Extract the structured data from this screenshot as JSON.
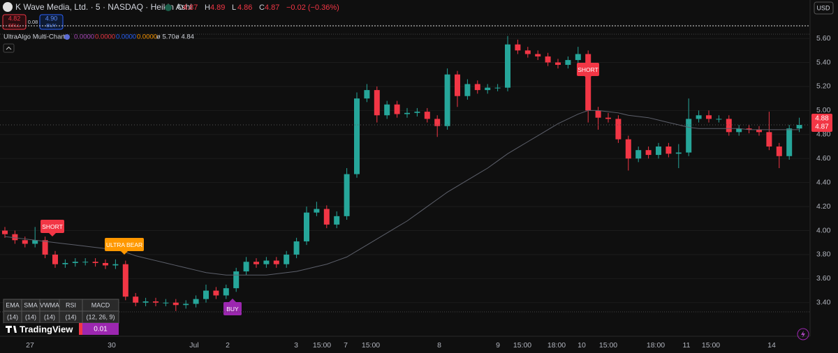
{
  "header": {
    "symbol": "K Wave Media, Ltd. · 5 · NASDAQ · Heikin Ashi",
    "ohlc": [
      {
        "label": "O",
        "value": 4.87
      },
      {
        "label": "H",
        "value": 4.89
      },
      {
        "label": "L",
        "value": 4.86
      },
      {
        "label": "C",
        "value": 4.87
      }
    ],
    "change": "−0.02 (−0.36%)",
    "currency": "USD"
  },
  "trade": {
    "sell_price": 4.82,
    "sell": "SELL",
    "spread": 0.08,
    "buy_price": 4.9,
    "buy_price_label": "4.90",
    "buy": "BUY"
  },
  "indicator": {
    "name": "UltraAlgo Multi-Chart",
    "values": [
      {
        "text": "0.0000",
        "color": "#ab47bc"
      },
      {
        "text": "0.0000",
        "color": "#f23645"
      },
      {
        "text": "0.0000",
        "color": "#2962ff"
      },
      {
        "text": "0.0000",
        "color": "#ff9800"
      },
      {
        "text": "ø 5.70",
        "color": "#d1d4dc"
      },
      {
        "text": "ø 4.84",
        "color": "#d1d4dc"
      }
    ]
  },
  "signals": [
    {
      "text": "SHORT",
      "color": "#f23645"
    },
    {
      "text": "ULTRA BEAR",
      "color": "#ff9800"
    },
    {
      "text": "BUY",
      "color": "#9c27b0"
    },
    {
      "text": "SHORT",
      "color": "#f23645"
    }
  ],
  "table": {
    "header": [
      "EMA",
      "SMA",
      "VWMA",
      "RSI",
      "MACD"
    ],
    "rows": [
      [
        "(14)",
        "(14)",
        "(14)",
        "(14)",
        "(12, 26, 9)"
      ]
    ],
    "last_value": "0.01"
  },
  "logo": "TradingView",
  "chart_data": {
    "type": "candlestick",
    "up_color": "#26a69a",
    "down_color": "#f23645",
    "ma_color": "#5d606b",
    "xlabels": [
      "27",
      "30",
      "Jul",
      "2",
      "3",
      "15:00",
      "7",
      "15:00",
      "8",
      "9",
      "15:00",
      "18:00",
      "10",
      "15:00",
      "18:00",
      "11",
      "15:00",
      "14"
    ],
    "ylim": [
      3.12,
      5.92
    ],
    "yticks": [
      {
        "value": 3.4,
        "label": "3.40"
      },
      {
        "value": 3.6,
        "label": "3.60"
      },
      {
        "value": 3.8,
        "label": "3.80"
      },
      {
        "value": 4.0,
        "label": "4.00"
      },
      {
        "value": 4.2,
        "label": "4.20"
      },
      {
        "value": 4.4,
        "label": "4.40"
      },
      {
        "value": 4.6,
        "label": "4.60"
      },
      {
        "value": 4.8,
        "label": "4.80"
      },
      {
        "value": 5.0,
        "label": "5.00"
      },
      {
        "value": 5.2,
        "label": "5.20"
      },
      {
        "value": 5.4,
        "label": "5.40"
      },
      {
        "value": 5.6,
        "label": "5.60"
      }
    ],
    "grid": true,
    "price_tags": [
      4.88,
      4.87
    ],
    "open": [
      4.0,
      3.97,
      3.92,
      3.89,
      3.92,
      3.8,
      3.72,
      3.73,
      3.74,
      3.74,
      3.73,
      3.71,
      3.72,
      3.45,
      3.4,
      3.41,
      3.4,
      3.4,
      3.38,
      3.39,
      3.43,
      3.5,
      3.46,
      3.52,
      3.66,
      3.74,
      3.72,
      3.75,
      3.72,
      3.8,
      3.91,
      4.15,
      4.18,
      4.05,
      4.12,
      4.47,
      5.1,
      5.17,
      4.96,
      5.05,
      4.97,
      4.98,
      4.99,
      4.93,
      4.87,
      5.3,
      5.12,
      5.22,
      5.17,
      5.19,
      5.19,
      5.55,
      5.5,
      5.47,
      5.45,
      5.4,
      5.38,
      5.42,
      5.47,
      5.0,
      4.94,
      4.93,
      4.76,
      4.6,
      4.67,
      4.63,
      4.7,
      4.64,
      4.65,
      4.93,
      4.96,
      4.93,
      4.93,
      4.82,
      4.85,
      4.84,
      4.82,
      4.7,
      4.62,
      4.85
    ],
    "high": [
      4.03,
      4.0,
      3.95,
      4.03,
      3.95,
      3.83,
      3.76,
      3.77,
      3.77,
      3.77,
      3.76,
      3.76,
      3.75,
      3.48,
      3.44,
      3.44,
      3.43,
      3.43,
      3.42,
      3.46,
      3.55,
      3.53,
      3.55,
      3.69,
      3.78,
      3.77,
      3.78,
      3.78,
      3.83,
      3.94,
      4.2,
      4.24,
      4.21,
      4.16,
      4.52,
      5.15,
      5.22,
      5.2,
      5.08,
      5.08,
      5.02,
      5.02,
      5.02,
      4.96,
      5.35,
      5.33,
      5.26,
      5.25,
      5.22,
      5.22,
      5.62,
      5.59,
      5.53,
      5.5,
      5.48,
      5.43,
      5.45,
      5.53,
      5.5,
      5.03,
      4.98,
      4.96,
      4.79,
      4.7,
      4.7,
      4.73,
      4.73,
      4.72,
      5.1,
      5.0,
      5.0,
      4.96,
      4.96,
      4.88,
      4.88,
      4.87,
      4.99,
      4.73,
      4.88,
      4.94
    ],
    "low": [
      3.94,
      3.89,
      3.86,
      3.86,
      3.77,
      3.69,
      3.69,
      3.7,
      3.71,
      3.7,
      3.68,
      3.68,
      3.42,
      3.37,
      3.37,
      3.37,
      3.37,
      3.33,
      3.35,
      3.36,
      3.4,
      3.43,
      3.43,
      3.49,
      3.63,
      3.69,
      3.69,
      3.69,
      3.69,
      3.77,
      3.88,
      4.12,
      4.02,
      4.02,
      4.09,
      4.44,
      5.07,
      4.9,
      4.93,
      4.94,
      4.94,
      4.95,
      4.9,
      4.78,
      4.84,
      5.03,
      5.09,
      5.14,
      5.14,
      5.16,
      5.16,
      5.47,
      5.44,
      5.42,
      5.37,
      5.35,
      5.35,
      5.39,
      4.9,
      4.84,
      4.9,
      4.73,
      4.5,
      4.57,
      4.6,
      4.6,
      4.61,
      4.52,
      4.62,
      4.9,
      4.9,
      4.9,
      4.79,
      4.79,
      4.81,
      4.79,
      4.67,
      4.52,
      4.59,
      4.82
    ],
    "close": [
      3.97,
      3.92,
      3.89,
      3.92,
      3.8,
      3.72,
      3.73,
      3.74,
      3.74,
      3.73,
      3.71,
      3.72,
      3.45,
      3.4,
      3.41,
      3.4,
      3.4,
      3.38,
      3.39,
      3.43,
      3.5,
      3.46,
      3.52,
      3.66,
      3.74,
      3.72,
      3.75,
      3.72,
      3.8,
      3.91,
      4.15,
      4.18,
      4.05,
      4.12,
      4.47,
      5.1,
      5.17,
      4.96,
      5.05,
      4.97,
      4.98,
      4.99,
      4.93,
      4.87,
      5.3,
      5.12,
      5.22,
      5.17,
      5.19,
      5.19,
      5.55,
      5.5,
      5.47,
      5.45,
      5.4,
      5.38,
      5.42,
      5.47,
      5.0,
      4.94,
      4.93,
      4.76,
      4.6,
      4.67,
      4.63,
      4.7,
      4.64,
      4.65,
      4.93,
      4.96,
      4.93,
      4.93,
      4.82,
      4.85,
      4.84,
      4.82,
      4.7,
      4.62,
      4.85,
      4.88
    ],
    "ma": [
      3.95,
      3.94,
      3.93,
      3.92,
      3.91,
      3.9,
      3.89,
      3.88,
      3.87,
      3.86,
      3.85,
      3.84,
      3.82,
      3.79,
      3.77,
      3.75,
      3.73,
      3.71,
      3.69,
      3.67,
      3.65,
      3.64,
      3.63,
      3.63,
      3.63,
      3.63,
      3.63,
      3.64,
      3.65,
      3.66,
      3.68,
      3.7,
      3.72,
      3.75,
      3.78,
      3.83,
      3.88,
      3.93,
      3.98,
      4.03,
      4.08,
      4.14,
      4.2,
      4.26,
      4.32,
      4.37,
      4.42,
      4.47,
      4.52,
      4.58,
      4.64,
      4.69,
      4.74,
      4.79,
      4.84,
      4.89,
      4.93,
      4.97,
      5.0,
      5.0,
      4.99,
      4.98,
      4.96,
      4.95,
      4.94,
      4.92,
      4.9,
      4.88,
      4.86,
      4.85,
      4.85,
      4.85,
      4.85,
      4.85,
      4.84,
      4.84,
      4.84,
      4.84,
      4.84,
      4.84
    ]
  }
}
